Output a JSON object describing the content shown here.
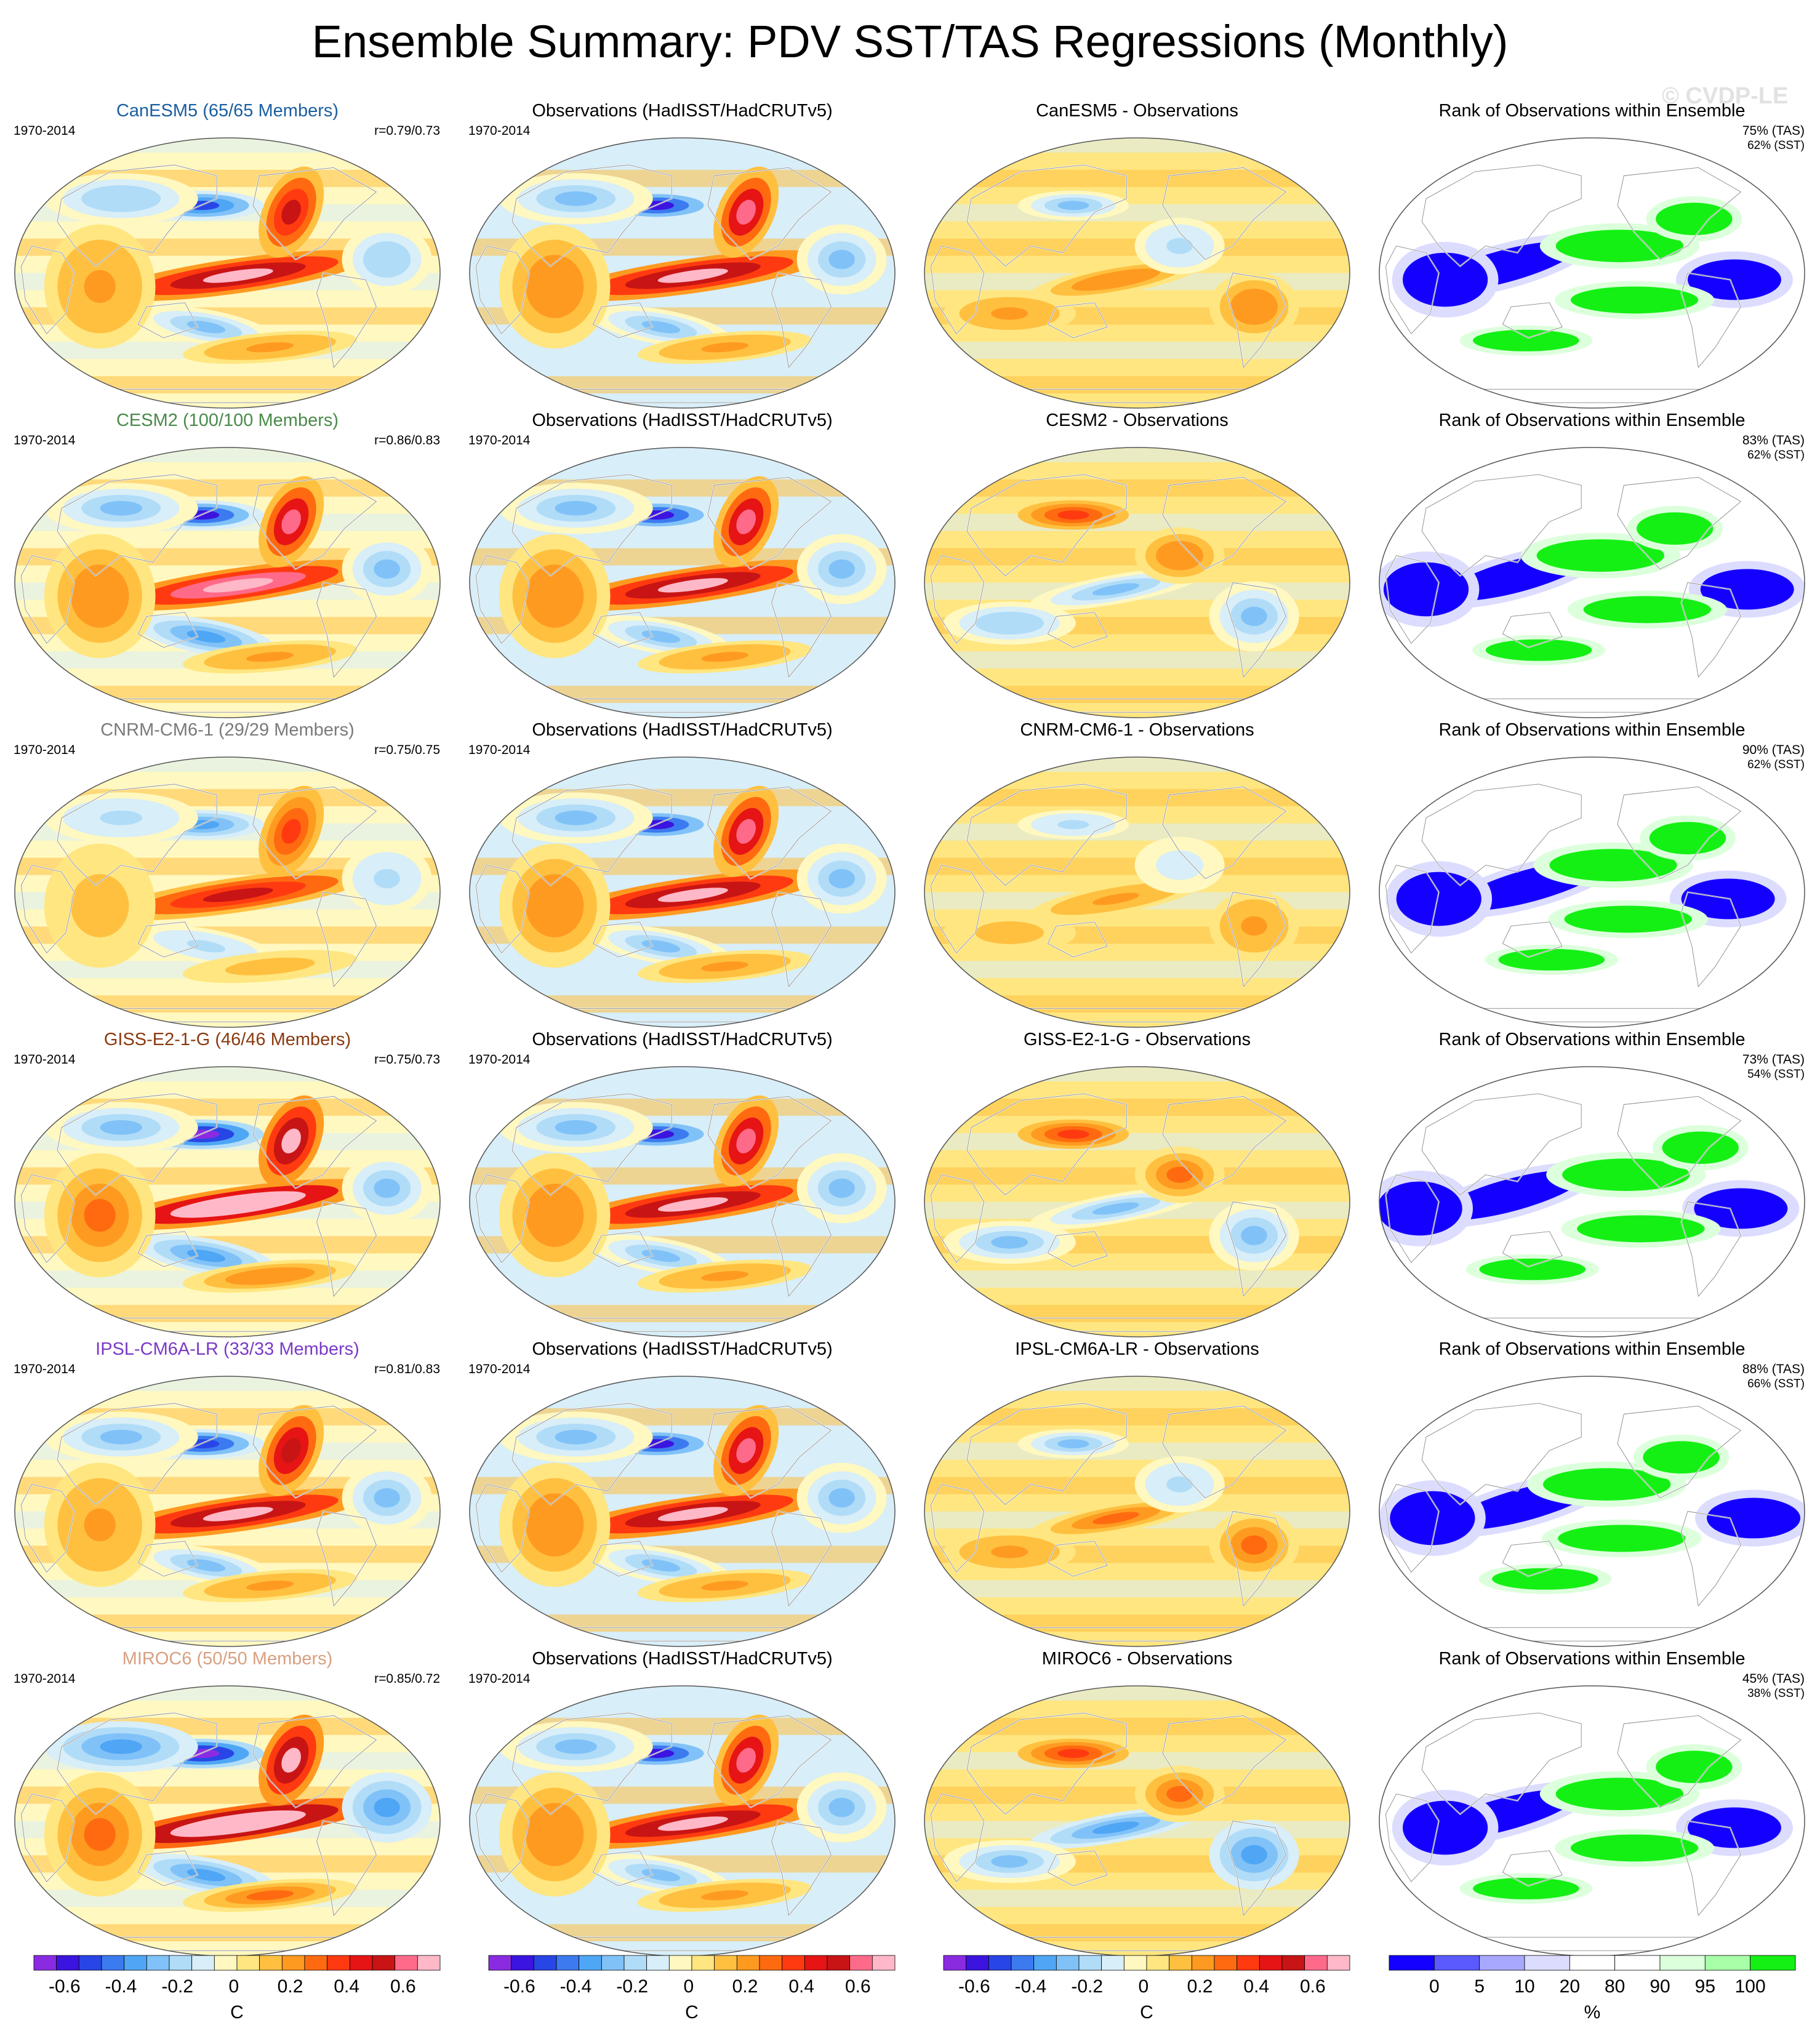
{
  "title": "Ensemble Summary: PDV SST/TAS Regressions (Monthly)",
  "watermark": "© CVDP-LE",
  "common": {
    "period": "1970-2014",
    "obs_title": "Observations (HadISST/HadCRUTv5)",
    "rank_title": "Rank of Observations within Ensemble"
  },
  "colors": {
    "diverging": [
      "#8a2be2",
      "#3c14e0",
      "#2846e6",
      "#3c7af0",
      "#4fa6f5",
      "#80c2f8",
      "#b0dcf8",
      "#d8eef8",
      "#fff8c0",
      "#ffe680",
      "#ffc040",
      "#ff9a20",
      "#ff6a10",
      "#ff3a10",
      "#e61414",
      "#c81414",
      "#ff6a8a",
      "#ffb8c8"
    ],
    "rank": [
      "#1400ff",
      "#5a5aff",
      "#a8a8ff",
      "#dcdcff",
      "#ffffff",
      "#ffffff",
      "#dcffdc",
      "#a8ffa8",
      "#14f014"
    ]
  },
  "rows": [
    {
      "model": "CanESM5 (65/65 Members)",
      "model_color": "#1a5fa0",
      "corr": "r=0.79/0.73",
      "diff_title": "CanESM5 - Observations",
      "rank_tas": "75% (TAS)",
      "rank_sst": "62% (SST)",
      "strength": 0.75
    },
    {
      "model": "CESM2 (100/100 Members)",
      "model_color": "#4a8a4a",
      "corr": "r=0.86/0.83",
      "diff_title": "CESM2 - Observations",
      "rank_tas": "83% (TAS)",
      "rank_sst": "62% (SST)",
      "strength": 0.9
    },
    {
      "model": "CNRM-CM6-1 (29/29 Members)",
      "model_color": "#7a7a7a",
      "corr": "r=0.75/0.75",
      "diff_title": "CNRM-CM6-1 - Observations",
      "rank_tas": "90% (TAS)",
      "rank_sst": "62% (SST)",
      "strength": 0.55
    },
    {
      "model": "GISS-E2-1-G (46/46 Members)",
      "model_color": "#8a3a10",
      "corr": "r=0.75/0.73",
      "diff_title": "GISS-E2-1-G - Observations",
      "rank_tas": "73% (TAS)",
      "rank_sst": "54% (SST)",
      "strength": 1.0
    },
    {
      "model": "IPSL-CM6A-LR (33/33 Members)",
      "model_color": "#7a3ac8",
      "corr": "r=0.81/0.83",
      "diff_title": "IPSL-CM6A-LR - Observations",
      "rank_tas": "88% (TAS)",
      "rank_sst": "66% (SST)",
      "strength": 0.8
    },
    {
      "model": "MIROC6 (50/50 Members)",
      "model_color": "#d8a080",
      "corr": "r=0.85/0.72",
      "diff_title": "MIROC6 - Observations",
      "rank_tas": "45% (TAS)",
      "rank_sst": "38% (SST)",
      "strength": 1.1
    }
  ],
  "colorbars": [
    {
      "ticks": [
        "-0.6",
        "-0.4",
        "-0.2",
        "0",
        "0.2",
        "0.4",
        "0.6"
      ],
      "unit": "C"
    },
    {
      "ticks": [
        "-0.6",
        "-0.4",
        "-0.2",
        "0",
        "0.2",
        "0.4",
        "0.6"
      ],
      "unit": "C"
    },
    {
      "ticks": [
        "-0.6",
        "-0.4",
        "-0.2",
        "0",
        "0.2",
        "0.4",
        "0.6"
      ],
      "unit": "C"
    },
    {
      "ticks": [
        "0",
        "5",
        "10",
        "20",
        "80",
        "90",
        "95",
        "100"
      ],
      "unit": "%"
    }
  ]
}
